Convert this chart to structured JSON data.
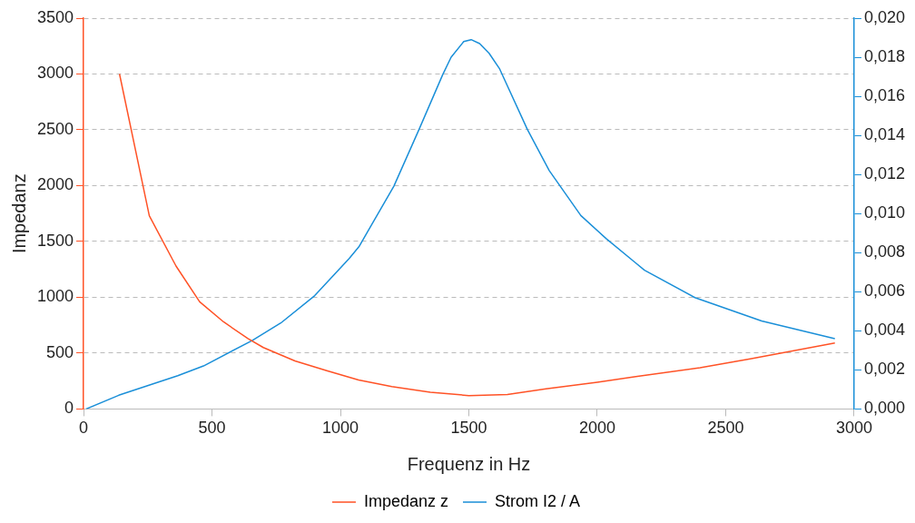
{
  "chart_data": {
    "type": "line",
    "xlabel": "Frequenz in Hz",
    "ylabel": "Impedanz",
    "xlim": [
      0,
      3000
    ],
    "xticks": [
      0,
      500,
      1000,
      1500,
      2000,
      2500,
      3000
    ],
    "ylim": [
      0,
      3500
    ],
    "yticks": [
      0,
      500,
      1000,
      1500,
      2000,
      2500,
      3000,
      3500
    ],
    "y2lim": [
      0,
      0.02
    ],
    "y2ticks": [
      {
        "value": 0,
        "label": "0,000"
      },
      {
        "value": 0.002,
        "label": "0,002"
      },
      {
        "value": 0.004,
        "label": "0,004"
      },
      {
        "value": 0.006,
        "label": "0,006"
      },
      {
        "value": 0.008,
        "label": "0,008"
      },
      {
        "value": 0.01,
        "label": "0,010"
      },
      {
        "value": 0.012,
        "label": "0,012"
      },
      {
        "value": 0.014,
        "label": "0,014"
      },
      {
        "value": 0.016,
        "label": "0,016"
      },
      {
        "value": 0.018,
        "label": "0,018"
      },
      {
        "value": 0.02,
        "label": "0,020"
      }
    ],
    "grid": "y",
    "legend": "bottom",
    "marker": "none",
    "line_style": "solid",
    "series": [
      {
        "name": "Impedanz z",
        "color": "#ff5226",
        "x": [
          140,
          256,
          360,
          452,
          545,
          640,
          700,
          823,
          950,
          1071,
          1200,
          1350,
          1500,
          1650,
          1800,
          2000,
          2150,
          2400,
          2600,
          2925
        ],
        "values": [
          3000,
          1730,
          1280,
          960,
          780,
          630,
          550,
          430,
          340,
          260,
          200,
          150,
          120,
          130,
          180,
          240,
          290,
          370,
          450,
          590
        ]
      },
      {
        "name": "Strom I2 / A",
        "color": "#1a8fd8",
        "axis": "y2",
        "x": [
          10,
          137,
          367,
          467,
          656,
          768,
          900,
          1034,
          1072,
          1208,
          1306,
          1398,
          1431,
          1480,
          1509,
          1542,
          1579,
          1620,
          1728,
          1813,
          1936,
          2036,
          2147,
          2184,
          2380,
          2640,
          2925
        ],
        "values": [
          0,
          0.0007,
          0.0017,
          0.0022,
          0.0035,
          0.0044,
          0.0058,
          0.0077,
          0.0083,
          0.0114,
          0.0143,
          0.0171,
          0.018,
          0.0188,
          0.0189,
          0.0187,
          0.0182,
          0.0174,
          0.0143,
          0.0122,
          0.0099,
          0.0087,
          0.0075,
          0.0071,
          0.0057,
          0.0045,
          0.0036
        ]
      }
    ]
  }
}
